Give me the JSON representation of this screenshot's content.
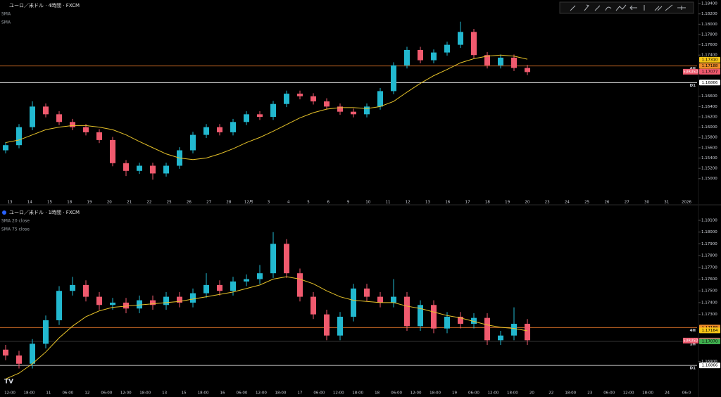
{
  "chart_data": [
    {
      "type": "candlestick",
      "title": "ユーロ／米ドル · 4時間 · FXCM",
      "indicators": [
        "SMA",
        "SMA"
      ],
      "up_color": "#22b8cf",
      "down_color": "#f05a6e",
      "sma_color": "#e6c229",
      "ylim": [
        1.146,
        1.1847
      ],
      "yticks": [
        {
          "value": 1.184,
          "label": "1.18400"
        },
        {
          "value": 1.182,
          "label": "1.18200"
        },
        {
          "value": 1.18,
          "label": "1.18000"
        },
        {
          "value": 1.178,
          "label": "1.17800"
        },
        {
          "value": 1.176,
          "label": "1.17600"
        },
        {
          "value": 1.174,
          "label": "1.17400"
        },
        {
          "value": 1.166,
          "label": "1.16600"
        },
        {
          "value": 1.164,
          "label": "1.16400"
        },
        {
          "value": 1.162,
          "label": "1.16200"
        },
        {
          "value": 1.16,
          "label": "1.16000"
        },
        {
          "value": 1.158,
          "label": "1.15800"
        },
        {
          "value": 1.156,
          "label": "1.15600"
        },
        {
          "value": 1.154,
          "label": "1.15400"
        },
        {
          "value": 1.152,
          "label": "1.15200"
        },
        {
          "value": 1.15,
          "label": "1.15000"
        }
      ],
      "x_labels": [
        "13",
        "14",
        "15",
        "18",
        "19",
        "20",
        "21",
        "22",
        "25",
        "26",
        "27",
        "28",
        "12月",
        "3",
        "4",
        "5",
        "6",
        "9",
        "10",
        "11",
        "12",
        "13",
        "16",
        "17",
        "18",
        "19",
        "20",
        "23",
        "24",
        "25",
        "26",
        "27",
        "30",
        "31",
        "2026"
      ],
      "ohlc": [
        [
          1.1555,
          1.1571,
          1.1549,
          1.1565
        ],
        [
          1.1565,
          1.1606,
          1.1559,
          1.16
        ],
        [
          1.16,
          1.165,
          1.1594,
          1.164
        ],
        [
          1.164,
          1.1646,
          1.1619,
          1.1625
        ],
        [
          1.1625,
          1.1631,
          1.1604,
          1.161
        ],
        [
          1.161,
          1.1616,
          1.1594,
          1.16
        ],
        [
          1.16,
          1.1606,
          1.1584,
          1.159
        ],
        [
          1.159,
          1.1596,
          1.1569,
          1.1575
        ],
        [
          1.1575,
          1.1581,
          1.1524,
          1.153
        ],
        [
          1.153,
          1.1536,
          1.1505,
          1.1515
        ],
        [
          1.1515,
          1.1531,
          1.1509,
          1.1525
        ],
        [
          1.1525,
          1.1531,
          1.1498,
          1.151
        ],
        [
          1.151,
          1.1531,
          1.1504,
          1.1525
        ],
        [
          1.1525,
          1.1561,
          1.1519,
          1.1555
        ],
        [
          1.1555,
          1.1591,
          1.1549,
          1.1585
        ],
        [
          1.1585,
          1.1606,
          1.1579,
          1.16
        ],
        [
          1.16,
          1.1606,
          1.1584,
          1.159
        ],
        [
          1.159,
          1.1616,
          1.1584,
          1.161
        ],
        [
          1.161,
          1.1631,
          1.1604,
          1.1625
        ],
        [
          1.1625,
          1.1631,
          1.1614,
          1.162
        ],
        [
          1.162,
          1.1651,
          1.1614,
          1.1645
        ],
        [
          1.1645,
          1.1671,
          1.1639,
          1.1665
        ],
        [
          1.1665,
          1.1671,
          1.1654,
          1.166
        ],
        [
          1.166,
          1.1666,
          1.1644,
          1.165
        ],
        [
          1.165,
          1.1656,
          1.1634,
          1.164
        ],
        [
          1.164,
          1.1646,
          1.1624,
          1.163
        ],
        [
          1.163,
          1.1636,
          1.1619,
          1.1625
        ],
        [
          1.1625,
          1.1646,
          1.1619,
          1.164
        ],
        [
          1.164,
          1.1676,
          1.1634,
          1.167
        ],
        [
          1.167,
          1.1726,
          1.1664,
          1.172
        ],
        [
          1.172,
          1.1756,
          1.1714,
          1.175
        ],
        [
          1.175,
          1.1756,
          1.1724,
          1.173
        ],
        [
          1.173,
          1.1751,
          1.1724,
          1.1745
        ],
        [
          1.1745,
          1.1766,
          1.1739,
          1.176
        ],
        [
          1.176,
          1.1805,
          1.1754,
          1.1785
        ],
        [
          1.1785,
          1.1791,
          1.1734,
          1.174
        ],
        [
          1.174,
          1.1746,
          1.1714,
          1.172
        ],
        [
          1.172,
          1.1741,
          1.1714,
          1.1735
        ],
        [
          1.1735,
          1.1741,
          1.1709,
          1.1715
        ],
        [
          1.1715,
          1.1721,
          1.1701,
          1.1707
        ]
      ],
      "sma": [
        1.157,
        1.1575,
        1.1585,
        1.1595,
        1.16,
        1.1603,
        1.1603,
        1.16,
        1.1595,
        1.1585,
        1.1572,
        1.156,
        1.1548,
        1.154,
        1.1537,
        1.154,
        1.1548,
        1.1558,
        1.157,
        1.158,
        1.1592,
        1.1605,
        1.1618,
        1.1628,
        1.1635,
        1.1638,
        1.1638,
        1.1636,
        1.164,
        1.165,
        1.1668,
        1.1685,
        1.17,
        1.1712,
        1.1725,
        1.1733,
        1.1738,
        1.174,
        1.1738,
        1.1732
      ],
      "levels": [
        {
          "value": 1.17188,
          "label": "4H",
          "color": "#e8782a"
        },
        {
          "value": 1.16866,
          "label": "D1",
          "color": "#ffffff"
        }
      ],
      "badges": [
        {
          "value": 1.1731,
          "label": "1.17310",
          "color": "#f5c518"
        },
        {
          "value": 1.17188,
          "label": "1.17188",
          "color": "#f08c2a"
        },
        {
          "value": 1.17077,
          "label": "1.17077",
          "color": "#f05a6e",
          "name": "EURUSD"
        },
        {
          "value": 1.16866,
          "label": "1.16866",
          "color": "#ffffff"
        }
      ]
    },
    {
      "type": "candlestick",
      "title": "ユーロ／米ドル · 1時間 · FXCM",
      "indicators": [
        "SMA 20 close",
        "SMA 75 close"
      ],
      "up_color": "#22b8cf",
      "down_color": "#f05a6e",
      "sma_color": "#e6c229",
      "ylim": [
        1.16669,
        1.18202
      ],
      "yticks": [
        {
          "value": 1.181,
          "label": "1.18100"
        },
        {
          "value": 1.18,
          "label": "1.18000"
        },
        {
          "value": 1.179,
          "label": "1.17900"
        },
        {
          "value": 1.178,
          "label": "1.17800"
        },
        {
          "value": 1.177,
          "label": "1.17700"
        },
        {
          "value": 1.176,
          "label": "1.17600"
        },
        {
          "value": 1.175,
          "label": "1.17500"
        },
        {
          "value": 1.174,
          "label": "1.17400"
        },
        {
          "value": 1.173,
          "label": "1.17300"
        },
        {
          "value": 1.169,
          "label": "1.16900"
        }
      ],
      "x_labels": [
        "12:00",
        "18:00",
        "11",
        "06:00",
        "12",
        "06:00",
        "12:00",
        "18:00",
        "13",
        "15",
        "18:00",
        "16",
        "06:00",
        "12:00",
        "18:00",
        "17",
        "06:00",
        "12:00",
        "18:00",
        "18",
        "06:00",
        "12:00",
        "18:00",
        "19",
        "06:00",
        "12:00",
        "18:00",
        "20",
        "22",
        "18:00",
        "23",
        "06:00",
        "12:00",
        "18:00",
        "24",
        "06:0"
      ],
      "ohlc": [
        [
          1.17,
          1.1704,
          1.1691,
          1.1695
        ],
        [
          1.1695,
          1.1699,
          1.1684,
          1.1688
        ],
        [
          1.1688,
          1.1709,
          1.1684,
          1.1705
        ],
        [
          1.1705,
          1.1729,
          1.1701,
          1.1725
        ],
        [
          1.1725,
          1.1754,
          1.1721,
          1.175
        ],
        [
          1.175,
          1.1762,
          1.1746,
          1.1755
        ],
        [
          1.1755,
          1.1759,
          1.1741,
          1.1745
        ],
        [
          1.1745,
          1.1749,
          1.1734,
          1.1738
        ],
        [
          1.1738,
          1.1744,
          1.1734,
          1.174
        ],
        [
          1.174,
          1.1744,
          1.1731,
          1.1735
        ],
        [
          1.1735,
          1.1746,
          1.1731,
          1.1742
        ],
        [
          1.1742,
          1.1746,
          1.1734,
          1.1738
        ],
        [
          1.1738,
          1.1749,
          1.1734,
          1.1745
        ],
        [
          1.1745,
          1.1749,
          1.1736,
          1.174
        ],
        [
          1.174,
          1.1752,
          1.1736,
          1.1748
        ],
        [
          1.1748,
          1.1765,
          1.1744,
          1.1755
        ],
        [
          1.1755,
          1.1759,
          1.1746,
          1.175
        ],
        [
          1.175,
          1.1762,
          1.1746,
          1.1758
        ],
        [
          1.1758,
          1.1764,
          1.1754,
          1.176
        ],
        [
          1.176,
          1.1772,
          1.1756,
          1.1765
        ],
        [
          1.1765,
          1.18,
          1.1761,
          1.179
        ],
        [
          1.179,
          1.1794,
          1.1761,
          1.1765
        ],
        [
          1.1765,
          1.1769,
          1.1741,
          1.1745
        ],
        [
          1.1745,
          1.1749,
          1.1726,
          1.173
        ],
        [
          1.173,
          1.1734,
          1.1708,
          1.1712
        ],
        [
          1.1712,
          1.1732,
          1.1708,
          1.1728
        ],
        [
          1.1728,
          1.1756,
          1.1724,
          1.1752
        ],
        [
          1.1752,
          1.1756,
          1.1741,
          1.1745
        ],
        [
          1.1745,
          1.1749,
          1.1736,
          1.174
        ],
        [
          1.174,
          1.176,
          1.1736,
          1.1745
        ],
        [
          1.1745,
          1.1749,
          1.1716,
          1.172
        ],
        [
          1.172,
          1.1742,
          1.1716,
          1.1738
        ],
        [
          1.1738,
          1.1742,
          1.1714,
          1.1718
        ],
        [
          1.1718,
          1.1732,
          1.1714,
          1.1728
        ],
        [
          1.1728,
          1.1732,
          1.1718,
          1.1722
        ],
        [
          1.1722,
          1.1731,
          1.1718,
          1.1727
        ],
        [
          1.1727,
          1.1731,
          1.1704,
          1.1708
        ],
        [
          1.1708,
          1.1716,
          1.1704,
          1.1712
        ],
        [
          1.1712,
          1.1736,
          1.1708,
          1.1722
        ],
        [
          1.1722,
          1.1726,
          1.1704,
          1.1708
        ]
      ],
      "sma": [
        1.1675,
        1.168,
        1.1688,
        1.1698,
        1.171,
        1.172,
        1.1728,
        1.1733,
        1.1736,
        1.1737,
        1.1738,
        1.1739,
        1.174,
        1.1741,
        1.1743,
        1.1745,
        1.1747,
        1.1749,
        1.1752,
        1.1755,
        1.176,
        1.1762,
        1.176,
        1.1756,
        1.175,
        1.1745,
        1.1742,
        1.1741,
        1.174,
        1.174,
        1.1737,
        1.1735,
        1.1732,
        1.1729,
        1.1727,
        1.1724,
        1.1721,
        1.1719,
        1.1718,
        1.1716
      ],
      "levels": [
        {
          "value": 1.17188,
          "label": "4H",
          "color": "#e8782a"
        },
        {
          "value": 1.1707,
          "label": "1H",
          "color": "#444444"
        },
        {
          "value": 1.16866,
          "label": "D1",
          "color": "#ffffff"
        }
      ],
      "badges": [
        {
          "value": 1.17188,
          "label": "1.17188",
          "color": "#f08c2a"
        },
        {
          "value": 1.17164,
          "label": "1.17164",
          "color": "#f5c518"
        },
        {
          "value": 1.17077,
          "label": "1.17077",
          "color": "#f05a6e",
          "name": "EURUSD"
        },
        {
          "value": 1.1707,
          "label": "1.17070",
          "color": "#3fae4e"
        },
        {
          "value": 1.16866,
          "label": "1.16866",
          "color": "#ffffff"
        }
      ]
    }
  ]
}
